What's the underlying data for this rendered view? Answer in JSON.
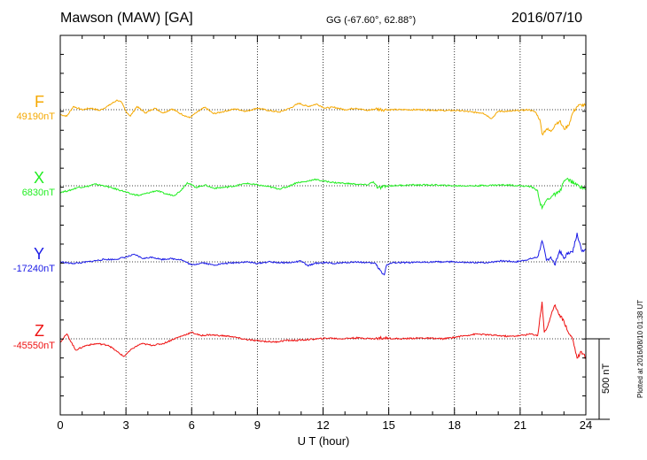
{
  "header": {
    "station": "Mawson (MAW)  [GA]",
    "coords": "GG (-67.60°,  62.88°)",
    "date": "2016/07/10"
  },
  "footer": {
    "plotted": "Plotted at 2016/08/10 01:38 UT"
  },
  "scale": {
    "label": "500 nT",
    "value_nT": 500
  },
  "chart_data": {
    "type": "line",
    "xlabel": "U T (hour)",
    "xlim": [
      0,
      24
    ],
    "xticks": [
      0,
      3,
      6,
      9,
      12,
      15,
      18,
      21,
      24
    ],
    "xtick_labels": [
      "0",
      "3",
      "6",
      "9",
      "12",
      "15",
      "18",
      "21",
      "24"
    ],
    "grid": "dotted vertical at 3-hour ticks; dotted baseline per component",
    "series": [
      {
        "name": "F",
        "baseline_label": "49190nT",
        "baseline_nT": 49190,
        "color": "#f5a800",
        "points": [
          [
            0,
            -30
          ],
          [
            0.3,
            -40
          ],
          [
            0.6,
            20
          ],
          [
            1.0,
            0
          ],
          [
            1.4,
            10
          ],
          [
            1.8,
            -5
          ],
          [
            2.2,
            25
          ],
          [
            2.6,
            60
          ],
          [
            2.8,
            45
          ],
          [
            3.0,
            -10
          ],
          [
            3.2,
            -40
          ],
          [
            3.5,
            20
          ],
          [
            3.9,
            -20
          ],
          [
            4.3,
            10
          ],
          [
            4.7,
            -20
          ],
          [
            5.1,
            5
          ],
          [
            5.5,
            -25
          ],
          [
            5.9,
            -50
          ],
          [
            6.2,
            -20
          ],
          [
            6.6,
            15
          ],
          [
            7.0,
            -25
          ],
          [
            7.5,
            -10
          ],
          [
            8.0,
            5
          ],
          [
            8.5,
            -10
          ],
          [
            9.0,
            10
          ],
          [
            9.5,
            -5
          ],
          [
            10.0,
            -15
          ],
          [
            10.5,
            10
          ],
          [
            10.9,
            40
          ],
          [
            11.3,
            20
          ],
          [
            11.7,
            35
          ],
          [
            12.1,
            10
          ],
          [
            12.5,
            15
          ],
          [
            13.0,
            0
          ],
          [
            13.5,
            10
          ],
          [
            14.0,
            -5
          ],
          [
            14.4,
            5
          ],
          [
            14.8,
            0
          ],
          [
            15.5,
            0
          ],
          [
            16.5,
            0
          ],
          [
            17.5,
            -5
          ],
          [
            18.2,
            -5
          ],
          [
            18.8,
            -15
          ],
          [
            19.3,
            -20
          ],
          [
            19.7,
            -55
          ],
          [
            20.0,
            -10
          ],
          [
            20.5,
            -10
          ],
          [
            21.0,
            -5
          ],
          [
            21.4,
            0
          ],
          [
            21.7,
            -15
          ],
          [
            21.9,
            -60
          ],
          [
            22.0,
            -150
          ],
          [
            22.2,
            -120
          ],
          [
            22.4,
            -135
          ],
          [
            22.6,
            -90
          ],
          [
            22.8,
            -70
          ],
          [
            23.0,
            -120
          ],
          [
            23.2,
            -100
          ],
          [
            23.4,
            -20
          ],
          [
            23.6,
            20
          ],
          [
            23.8,
            30
          ],
          [
            24.0,
            25
          ]
        ]
      },
      {
        "name": "X",
        "baseline_label": "6830nT",
        "baseline_nT": 6830,
        "color": "#22ee22",
        "points": [
          [
            0,
            -40
          ],
          [
            0.4,
            -30
          ],
          [
            0.8,
            -10
          ],
          [
            1.2,
            -5
          ],
          [
            1.6,
            10
          ],
          [
            2.0,
            0
          ],
          [
            2.4,
            -15
          ],
          [
            2.8,
            -30
          ],
          [
            3.2,
            -50
          ],
          [
            3.6,
            -60
          ],
          [
            4.0,
            -45
          ],
          [
            4.4,
            -30
          ],
          [
            4.8,
            -50
          ],
          [
            5.2,
            -60
          ],
          [
            5.5,
            -30
          ],
          [
            5.8,
            20
          ],
          [
            6.2,
            -10
          ],
          [
            6.6,
            5
          ],
          [
            7.0,
            -15
          ],
          [
            7.5,
            -10
          ],
          [
            8.0,
            0
          ],
          [
            8.5,
            15
          ],
          [
            9.0,
            5
          ],
          [
            9.5,
            -5
          ],
          [
            10.0,
            -20
          ],
          [
            10.4,
            -5
          ],
          [
            10.8,
            20
          ],
          [
            11.2,
            25
          ],
          [
            11.6,
            40
          ],
          [
            12.0,
            30
          ],
          [
            12.5,
            20
          ],
          [
            13.0,
            15
          ],
          [
            13.5,
            10
          ],
          [
            14.0,
            5
          ],
          [
            14.3,
            25
          ],
          [
            14.5,
            -15
          ],
          [
            15.0,
            0
          ],
          [
            16.0,
            5
          ],
          [
            17.0,
            5
          ],
          [
            18.0,
            0
          ],
          [
            19.0,
            0
          ],
          [
            20.0,
            5
          ],
          [
            20.5,
            5
          ],
          [
            21.0,
            0
          ],
          [
            21.5,
            -5
          ],
          [
            21.8,
            -30
          ],
          [
            21.9,
            -100
          ],
          [
            22.0,
            -140
          ],
          [
            22.2,
            -90
          ],
          [
            22.5,
            -60
          ],
          [
            22.8,
            -40
          ],
          [
            23.0,
            30
          ],
          [
            23.2,
            40
          ],
          [
            23.5,
            10
          ],
          [
            24.0,
            -20
          ]
        ]
      },
      {
        "name": "Y",
        "baseline_label": "-17240nT",
        "baseline_nT": -17240,
        "color": "#1a1ae6",
        "points": [
          [
            0,
            0
          ],
          [
            0.5,
            -10
          ],
          [
            1.0,
            -5
          ],
          [
            1.5,
            5
          ],
          [
            2.0,
            15
          ],
          [
            2.5,
            15
          ],
          [
            3.0,
            30
          ],
          [
            3.4,
            45
          ],
          [
            3.8,
            20
          ],
          [
            4.2,
            30
          ],
          [
            4.6,
            15
          ],
          [
            5.0,
            20
          ],
          [
            5.5,
            15
          ],
          [
            6.0,
            -20
          ],
          [
            6.5,
            -5
          ],
          [
            7.0,
            -20
          ],
          [
            7.5,
            -10
          ],
          [
            8.0,
            -5
          ],
          [
            8.5,
            0
          ],
          [
            9.0,
            -10
          ],
          [
            9.5,
            0
          ],
          [
            10.0,
            -5
          ],
          [
            10.5,
            -5
          ],
          [
            11.0,
            5
          ],
          [
            11.3,
            -25
          ],
          [
            11.6,
            -10
          ],
          [
            12.0,
            -5
          ],
          [
            12.5,
            -10
          ],
          [
            13.0,
            -5
          ],
          [
            13.5,
            0
          ],
          [
            14.0,
            -5
          ],
          [
            14.4,
            -10
          ],
          [
            14.6,
            -50
          ],
          [
            14.8,
            -80
          ],
          [
            14.9,
            -20
          ],
          [
            15.2,
            -5
          ],
          [
            16.0,
            -5
          ],
          [
            17.0,
            0
          ],
          [
            18.0,
            0
          ],
          [
            18.5,
            -5
          ],
          [
            19.0,
            -5
          ],
          [
            19.5,
            -5
          ],
          [
            20.0,
            5
          ],
          [
            20.4,
            5
          ],
          [
            20.8,
            0
          ],
          [
            21.2,
            10
          ],
          [
            21.5,
            20
          ],
          [
            21.8,
            30
          ],
          [
            22.0,
            130
          ],
          [
            22.2,
            10
          ],
          [
            22.4,
            30
          ],
          [
            22.6,
            -20
          ],
          [
            22.8,
            70
          ],
          [
            23.0,
            20
          ],
          [
            23.2,
            60
          ],
          [
            23.4,
            60
          ],
          [
            23.6,
            180
          ],
          [
            23.8,
            70
          ],
          [
            24.0,
            80
          ]
        ]
      },
      {
        "name": "Z",
        "baseline_label": "-45550nT",
        "baseline_nT": -45550,
        "color": "#ee1111",
        "points": [
          [
            0,
            -20
          ],
          [
            0.3,
            30
          ],
          [
            0.7,
            -70
          ],
          [
            1.2,
            -40
          ],
          [
            1.7,
            -30
          ],
          [
            2.2,
            -40
          ],
          [
            2.6,
            -80
          ],
          [
            2.9,
            -110
          ],
          [
            3.3,
            -60
          ],
          [
            3.7,
            -30
          ],
          [
            4.2,
            -40
          ],
          [
            4.7,
            -30
          ],
          [
            5.2,
            0
          ],
          [
            5.6,
            20
          ],
          [
            6.0,
            40
          ],
          [
            6.4,
            20
          ],
          [
            6.8,
            25
          ],
          [
            7.3,
            20
          ],
          [
            7.8,
            15
          ],
          [
            8.3,
            0
          ],
          [
            8.8,
            -10
          ],
          [
            9.3,
            -15
          ],
          [
            9.8,
            -20
          ],
          [
            10.3,
            -10
          ],
          [
            10.8,
            -10
          ],
          [
            11.3,
            -5
          ],
          [
            11.8,
            0
          ],
          [
            12.3,
            5
          ],
          [
            12.8,
            0
          ],
          [
            13.3,
            5
          ],
          [
            13.8,
            5
          ],
          [
            14.3,
            0
          ],
          [
            14.8,
            5
          ],
          [
            15.5,
            0
          ],
          [
            16.5,
            5
          ],
          [
            17.5,
            0
          ],
          [
            18.0,
            10
          ],
          [
            18.5,
            20
          ],
          [
            19.0,
            30
          ],
          [
            19.5,
            25
          ],
          [
            20.0,
            20
          ],
          [
            20.5,
            15
          ],
          [
            21.0,
            20
          ],
          [
            21.5,
            30
          ],
          [
            21.8,
            20
          ],
          [
            22.0,
            230
          ],
          [
            22.1,
            40
          ],
          [
            22.2,
            60
          ],
          [
            22.4,
            140
          ],
          [
            22.6,
            210
          ],
          [
            22.8,
            150
          ],
          [
            23.0,
            110
          ],
          [
            23.2,
            40
          ],
          [
            23.4,
            0
          ],
          [
            23.6,
            -120
          ],
          [
            23.8,
            -80
          ],
          [
            24.0,
            -120
          ]
        ]
      }
    ]
  }
}
